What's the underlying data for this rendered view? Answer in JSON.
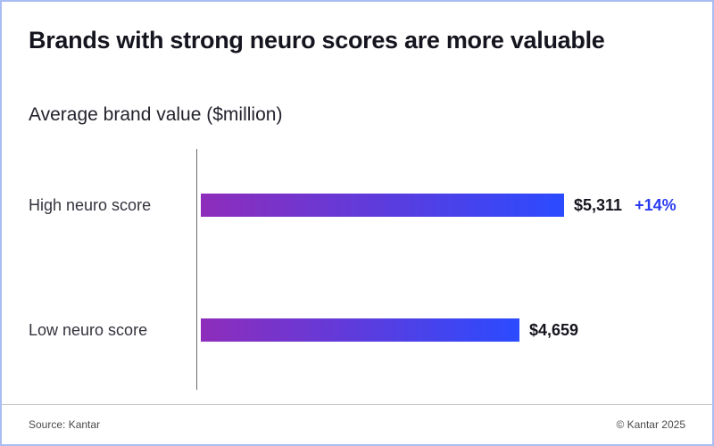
{
  "title": "Brands with strong neuro scores are more valuable",
  "subtitle": "Average brand value ($million)",
  "footer": {
    "source": "Source: Kantar",
    "copyright": "© Kantar 2025"
  },
  "colors": {
    "bar_gradient_start": "#8e2dbb",
    "bar_gradient_end": "#2b4bff",
    "annotation_accent": "#2b3cf0",
    "title_text": "#15151f",
    "body_text": "#33333d"
  },
  "chart_data": {
    "type": "bar",
    "orientation": "horizontal",
    "title": "Brands with strong neuro scores are more valuable",
    "subtitle": "Average brand value ($million)",
    "xlabel": "Average brand value ($million)",
    "ylabel": "",
    "categories": [
      "High neuro score",
      "Low neuro score"
    ],
    "values": [
      5311,
      4659
    ],
    "value_labels": [
      "$5,311",
      "$4,659"
    ],
    "annotations": [
      "+14%",
      ""
    ],
    "xlim": [
      0,
      5311
    ],
    "grid": false,
    "legend": false
  }
}
